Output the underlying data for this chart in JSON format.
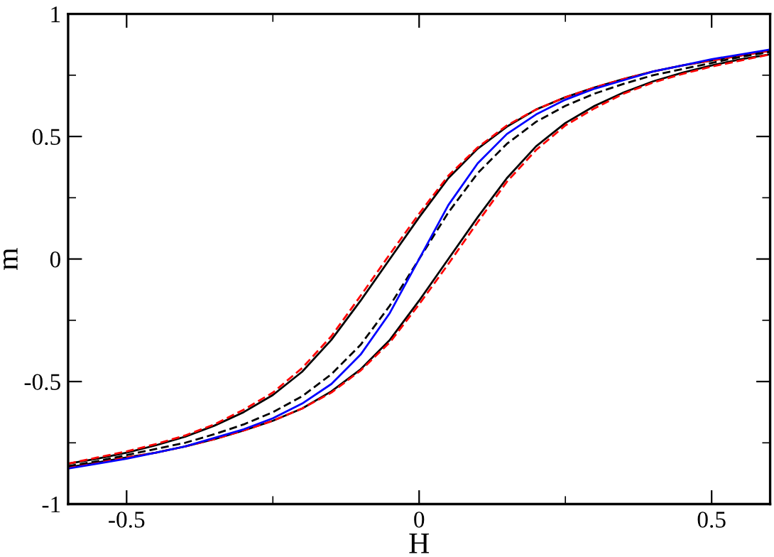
{
  "chart_data": {
    "type": "line",
    "xlabel": "H",
    "ylabel": "m",
    "xlim": [
      -0.6,
      0.6
    ],
    "ylim": [
      -1,
      1
    ],
    "xticks": [
      {
        "value": -0.5,
        "label": "-0.5"
      },
      {
        "value": -0.25,
        "label": null
      },
      0,
      {
        "value": 0.25,
        "label": null
      },
      0.5
    ],
    "yticks": [
      -1,
      {
        "value": -0.75,
        "label": null
      },
      {
        "value": -0.5,
        "label": "-0.5"
      },
      {
        "value": -0.25,
        "label": null
      },
      0,
      {
        "value": 0.25,
        "label": null
      },
      0.5,
      {
        "value": 0.75,
        "label": null
      },
      1
    ],
    "grid": false,
    "legend": false,
    "marker": "none",
    "x": [
      -0.6,
      -0.55,
      -0.5,
      -0.45,
      -0.4,
      -0.35,
      -0.3,
      -0.25,
      -0.2,
      -0.15,
      -0.1,
      -0.05,
      0,
      0.05,
      0.1,
      0.15,
      0.2,
      0.25,
      0.3,
      0.35,
      0.4,
      0.45,
      0.5,
      0.55,
      0.6
    ],
    "series": [
      {
        "color": "#000000",
        "line_style": "solid",
        "values": [
          -0.835,
          -0.815,
          -0.79,
          -0.76,
          -0.725,
          -0.68,
          -0.625,
          -0.555,
          -0.46,
          -0.33,
          -0.17,
          0.0,
          0.17,
          0.33,
          0.45,
          0.54,
          0.61,
          0.66,
          0.7,
          0.735,
          0.765,
          0.79,
          0.81,
          0.83,
          0.85
        ]
      },
      {
        "color": "#000000",
        "line_style": "solid",
        "values": [
          -0.85,
          -0.83,
          -0.81,
          -0.79,
          -0.765,
          -0.735,
          -0.7,
          -0.66,
          -0.61,
          -0.54,
          -0.45,
          -0.33,
          -0.17,
          0.0,
          0.17,
          0.33,
          0.46,
          0.555,
          0.625,
          0.68,
          0.725,
          0.76,
          0.79,
          0.815,
          0.835
        ]
      },
      {
        "color": "#ff0000",
        "line_style": "dashed",
        "values": [
          -0.835,
          -0.81,
          -0.785,
          -0.755,
          -0.72,
          -0.675,
          -0.615,
          -0.545,
          -0.445,
          -0.315,
          -0.15,
          0.02,
          0.185,
          0.34,
          0.455,
          0.545,
          0.61,
          0.66,
          0.7,
          0.735,
          0.765,
          0.79,
          0.81,
          0.83,
          0.85
        ]
      },
      {
        "color": "#ff0000",
        "line_style": "dashed",
        "values": [
          -0.85,
          -0.83,
          -0.81,
          -0.79,
          -0.765,
          -0.735,
          -0.7,
          -0.66,
          -0.61,
          -0.545,
          -0.455,
          -0.34,
          -0.185,
          -0.02,
          0.15,
          0.315,
          0.445,
          0.545,
          0.615,
          0.675,
          0.72,
          0.755,
          0.785,
          0.81,
          0.835
        ]
      },
      {
        "color": "#000000",
        "line_style": "dashed",
        "values": [
          -0.845,
          -0.825,
          -0.8,
          -0.775,
          -0.75,
          -0.715,
          -0.675,
          -0.625,
          -0.56,
          -0.47,
          -0.35,
          -0.19,
          0.0,
          0.19,
          0.35,
          0.47,
          0.56,
          0.625,
          0.675,
          0.715,
          0.75,
          0.775,
          0.8,
          0.825,
          0.845
        ]
      },
      {
        "color": "#0000ff",
        "line_style": "solid",
        "values": [
          -0.855,
          -0.835,
          -0.815,
          -0.79,
          -0.765,
          -0.73,
          -0.695,
          -0.65,
          -0.59,
          -0.51,
          -0.39,
          -0.22,
          0.0,
          0.22,
          0.39,
          0.51,
          0.59,
          0.65,
          0.695,
          0.73,
          0.765,
          0.79,
          0.815,
          0.835,
          0.855
        ]
      }
    ]
  }
}
